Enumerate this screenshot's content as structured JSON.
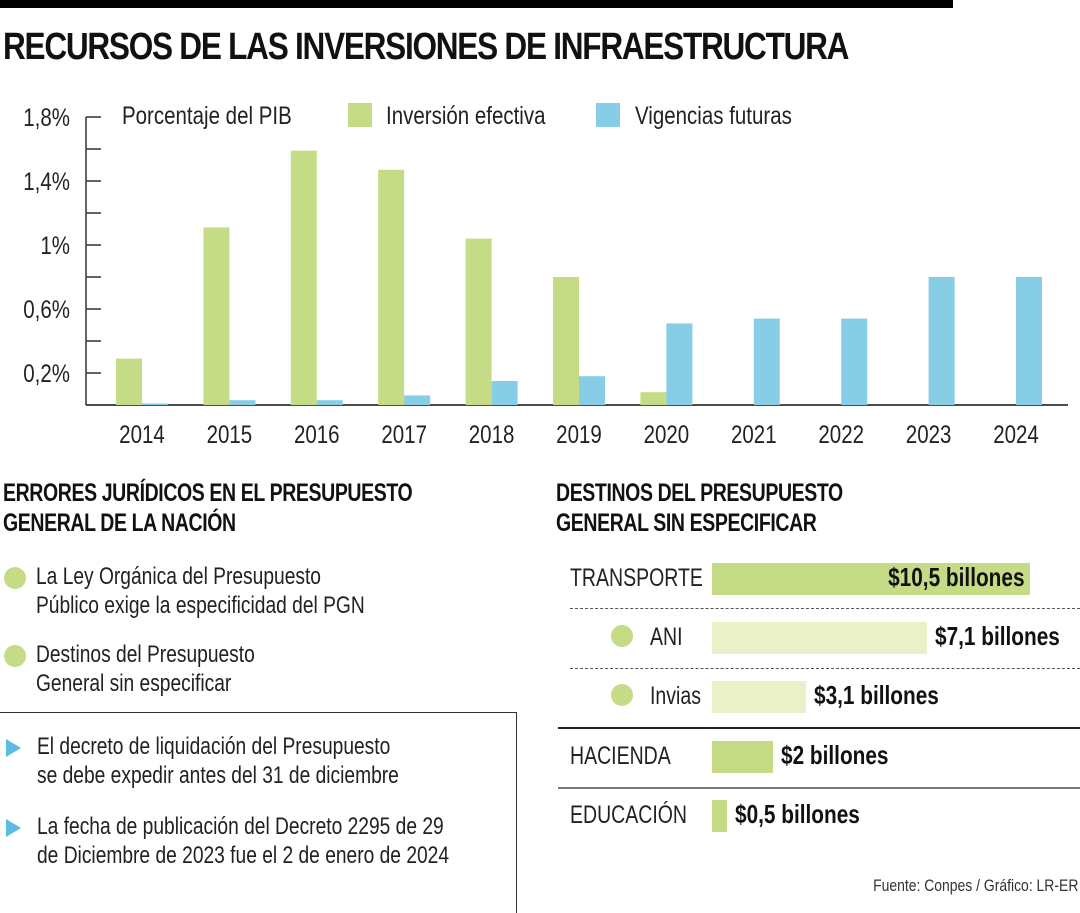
{
  "title": "RECURSOS DE LAS INVERSIONES DE INFRAESTRUCTURA",
  "colors": {
    "inversion_efectiva": "#c5db86",
    "vigencias_futuras": "#88cde6",
    "light_green": "#eaf1c9",
    "axis": "#111111"
  },
  "chart_data": [
    {
      "type": "bar",
      "title": "",
      "ylabel": "Porcentaje del PIB",
      "xlabel": "",
      "categories": [
        "2014",
        "2015",
        "2016",
        "2017",
        "2018",
        "2019",
        "2020",
        "2021",
        "2022",
        "2023",
        "2024"
      ],
      "series": [
        {
          "name": "Inversión efectiva",
          "values": [
            0.29,
            1.11,
            1.59,
            1.47,
            1.04,
            0.8,
            0.08,
            0,
            0,
            0,
            0
          ]
        },
        {
          "name": "Vigencias futuras",
          "values": [
            0.01,
            0.03,
            0.03,
            0.06,
            0.15,
            0.18,
            0.51,
            0.54,
            0.54,
            0.8,
            0.8
          ]
        }
      ],
      "ylim": [
        0,
        1.8
      ],
      "yticks": [
        0.2,
        0.4,
        0.6,
        0.8,
        1.0,
        1.2,
        1.4,
        1.6,
        1.8
      ],
      "ytick_labels": [
        {
          "value": 1.8,
          "label": "1,8%"
        },
        {
          "value": 1.4,
          "label": "1,4%"
        },
        {
          "value": 1.0,
          "label": "1%"
        },
        {
          "value": 0.6,
          "label": "0,6%"
        },
        {
          "value": 0.2,
          "label": "0,2%"
        }
      ],
      "grid": false,
      "legend": "top"
    },
    {
      "type": "bar",
      "orientation": "horizontal",
      "title": "DESTINOS DEL PRESUPUESTO GENERAL SIN ESPECIFICAR",
      "unit": "billones",
      "categories": [
        "TRANSPORTE",
        "ANI",
        "Invias",
        "HACIENDA",
        "EDUCACIÓN"
      ],
      "values": [
        10.5,
        7.1,
        3.1,
        2,
        0.5
      ],
      "labels": [
        "$10,5 billones",
        "$7,1 billones",
        "$3,1 billones",
        "$2 billones",
        "$0,5 billones"
      ]
    }
  ],
  "left_section": {
    "heading_line1": "ERRORES JURÍDICOS EN EL PRESUPUESTO",
    "heading_line2": "GENERAL DE LA NACIÓN",
    "circle_items": [
      {
        "line1": "La Ley Orgánica del Presupuesto",
        "line2": "Público exige la especificidad del PGN"
      },
      {
        "line1": "Destinos del Presupuesto",
        "line2": "General sin especificar"
      }
    ],
    "arrow_items": [
      {
        "line1": "El decreto de liquidación del Presupuesto",
        "line2": "se debe expedir antes del 31 de diciembre"
      },
      {
        "line1": "La fecha de publicación del Decreto  2295 de 29",
        "line2": "de Diciembre de 2023 fue el 2 de enero de 2024"
      }
    ]
  },
  "right_section": {
    "heading_line1": "DESTINOS DEL PRESUPUESTO",
    "heading_line2": "GENERAL SIN ESPECIFICAR",
    "rows": [
      {
        "label": "TRANSPORTE",
        "value": 10.5,
        "text": "$10,5 billones",
        "sub": false
      },
      {
        "label": "ANI",
        "value": 7.1,
        "text": "$7,1 billones",
        "sub": true
      },
      {
        "label": "Invias",
        "value": 3.1,
        "text": "$3,1 billones",
        "sub": true
      },
      {
        "label": "HACIENDA",
        "value": 2,
        "text": "$2 billones",
        "sub": false
      },
      {
        "label": "EDUCACIÓN",
        "value": 0.5,
        "text": "$0,5 billones",
        "sub": false
      }
    ]
  },
  "source": "Fuente: Conpes / Gráfico: LR-ER"
}
